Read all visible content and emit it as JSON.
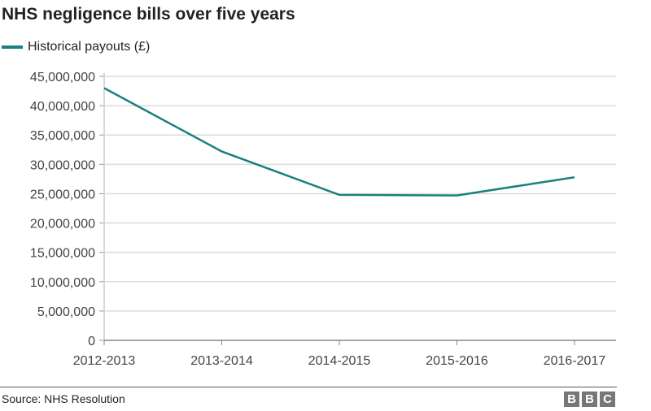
{
  "chart_data": {
    "type": "line",
    "title": "NHS negligence bills over five years",
    "categories": [
      "2012-2013",
      "2013-2014",
      "2014-2015",
      "2015-2016",
      "2016-2017"
    ],
    "series": [
      {
        "name": "Historical payouts (£)",
        "values": [
          43000000,
          32200000,
          24800000,
          24700000,
          27800000
        ],
        "color": "#1a7f7f"
      }
    ],
    "ylim": [
      0,
      45000000
    ],
    "yticks": [
      0,
      5000000,
      10000000,
      15000000,
      20000000,
      25000000,
      30000000,
      35000000,
      40000000,
      45000000
    ],
    "ytick_labels": [
      "0",
      "5,000,000",
      "10,000,000",
      "15,000,000",
      "20,000,000",
      "25,000,000",
      "30,000,000",
      "35,000,000",
      "40,000,000",
      "45,000,000"
    ],
    "grid": true,
    "legend": "top-left"
  },
  "footer": {
    "source": "Source: NHS Resolution",
    "logo": "BBC"
  }
}
